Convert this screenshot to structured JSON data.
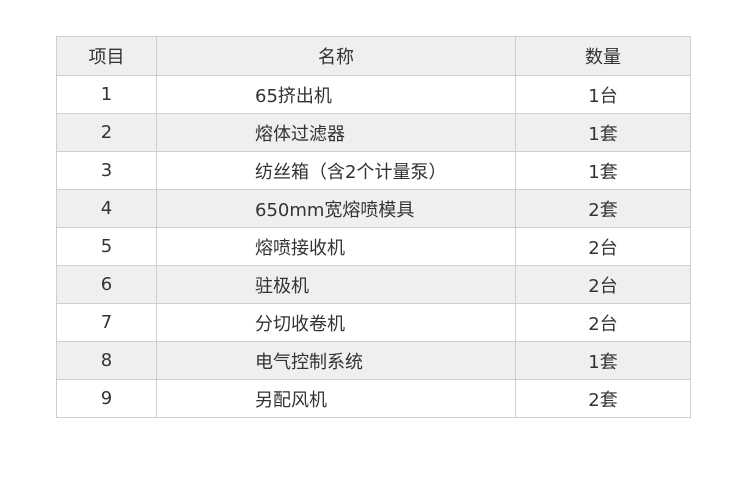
{
  "table": {
    "headers": [
      "项目",
      "名称",
      "数量"
    ],
    "rows": [
      [
        "1",
        "65挤出机",
        "1台"
      ],
      [
        "2",
        "熔体过滤器",
        "1套"
      ],
      [
        "3",
        "纺丝箱（含2个计量泵）",
        "1套"
      ],
      [
        "4",
        "650mm宽熔喷模具",
        "2套"
      ],
      [
        "5",
        "熔喷接收机",
        "2台"
      ],
      [
        "6",
        "驻极机",
        "2台"
      ],
      [
        "7",
        "分切收卷机",
        "2台"
      ],
      [
        "8",
        "电气控制系统",
        "1套"
      ],
      [
        "9",
        "另配风机",
        "2套"
      ]
    ]
  },
  "colors": {
    "header_bg": "#efefef",
    "alt_row_bg": "#efefef",
    "border": "#cfcfcf",
    "text": "#333333"
  }
}
